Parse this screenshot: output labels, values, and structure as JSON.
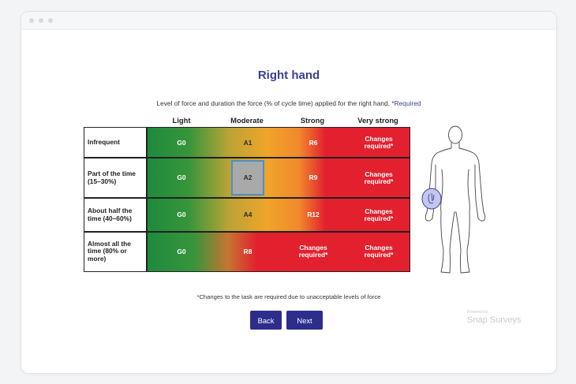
{
  "page": {
    "title": "Right hand"
  },
  "instructions": {
    "text": "Level of force and duration the force (% of cycle time) applied for the right hand.",
    "required": "*Required"
  },
  "columns": [
    "Light",
    "Moderate",
    "Strong",
    "Very strong"
  ],
  "rows": [
    {
      "label": "Infrequent",
      "cells": [
        "G0",
        "A1",
        "R6",
        "Changes required*"
      ]
    },
    {
      "label": "Part of the time (15–30%)",
      "cells": [
        "G0",
        "A2",
        "R9",
        "Changes required*"
      ]
    },
    {
      "label": "About half the time (40–60%)",
      "cells": [
        "G0",
        "A4",
        "R12",
        "Changes required*"
      ]
    },
    {
      "label": "Almost all the time (80% or more)",
      "cells": [
        "G0",
        "R8",
        "Changes required*",
        "Changes required*"
      ]
    }
  ],
  "selected_cell": "A2",
  "footnote": "*Changes to the task are required due to unacceptable levels of force",
  "buttons": {
    "back": "Back",
    "next": "Next"
  },
  "powered_by": {
    "prefix": "Powered by",
    "brand": "Snap Surveys"
  },
  "colors": {
    "accent": "#2e2d8c",
    "title": "#3b3f91",
    "green": "#1e8a3c",
    "amber": "#f0a42a",
    "red": "#e3202e",
    "highlight": "#4a90c8"
  },
  "icons": [
    "body-outline-icon",
    "hand-highlight-icon"
  ]
}
